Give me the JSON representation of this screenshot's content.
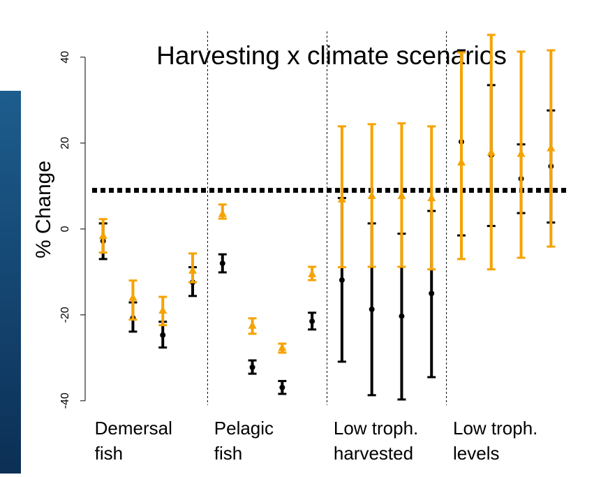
{
  "chart_data": {
    "type": "errorbar",
    "title": "Harvesting x climate scenarios",
    "ylabel": "% Change",
    "x": [
      1,
      2,
      3,
      4,
      5,
      6,
      7,
      8,
      9,
      10,
      11,
      12,
      13,
      14,
      15,
      16
    ],
    "xlim": [
      0.4,
      16.6
    ],
    "ylim": [
      -41,
      46
    ],
    "yticks": [
      -40,
      -20,
      0,
      20,
      40
    ],
    "hline": 9,
    "groups": [
      [
        "Demersal",
        "fish"
      ],
      [
        "Pelagic",
        "fish"
      ],
      [
        "Low troph.",
        "harvested"
      ],
      [
        "Low troph.",
        "levels"
      ]
    ],
    "series": [
      {
        "color": "#000000",
        "marker": "circle",
        "values": [
          -2.8,
          -20.7,
          -24.7,
          -12.4,
          -8.0,
          -32.2,
          -36.9,
          -21.5,
          -11.9,
          -18.7,
          -20.3,
          -15.0,
          20.3,
          17.2,
          11.7,
          14.6
        ],
        "lower": [
          -7.0,
          -23.9,
          -27.6,
          -15.6,
          -10.1,
          -33.7,
          -38.4,
          -23.4,
          -30.9,
          -38.7,
          -39.7,
          -34.5,
          -1.5,
          0.7,
          3.7,
          1.5
        ],
        "upper": [
          1.3,
          -17.1,
          -21.6,
          -8.9,
          -5.9,
          -30.6,
          -35.4,
          -19.5,
          7.2,
          1.3,
          -1.1,
          4.2,
          41.6,
          33.5,
          19.7,
          27.6
        ]
      },
      {
        "color": "#f5a300",
        "marker": "triangle",
        "values": [
          -1.5,
          -15.9,
          -18.9,
          -9.6,
          3.6,
          -22.4,
          -27.6,
          -10.4,
          7.0,
          7.8,
          7.8,
          7.3,
          15.6,
          17.9,
          17.6,
          18.9
        ],
        "lower": [
          -5.5,
          -21.1,
          -22.4,
          -12.4,
          2.4,
          -24.4,
          -28.8,
          -11.9,
          -8.9,
          -8.8,
          -8.8,
          -9.4,
          -7.0,
          -9.4,
          -6.7,
          -4.1
        ],
        "upper": [
          2.3,
          -12.0,
          -15.8,
          -5.7,
          5.7,
          -20.8,
          -26.7,
          -8.8,
          23.9,
          24.4,
          24.6,
          23.9,
          41.1,
          45.2,
          41.3,
          41.6
        ]
      }
    ]
  }
}
